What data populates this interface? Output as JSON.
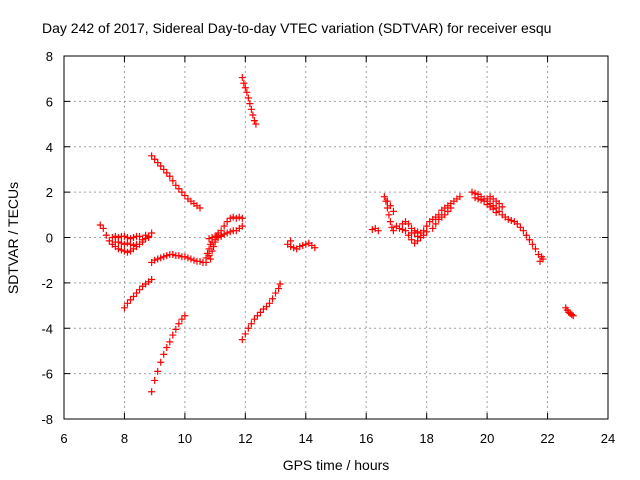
{
  "chart_data": {
    "type": "scatter",
    "title": "Day 242 of 2017, Sidereal Day-to-day VTEC variation (SDTVAR) for receiver esqu",
    "xlabel": "GPS time / hours",
    "ylabel": "SDTVAR / TECUs",
    "xlim": [
      6,
      24
    ],
    "ylim": [
      -8,
      8
    ],
    "xticks": [
      "6",
      "8",
      "10",
      "12",
      "14",
      "16",
      "18",
      "20",
      "22",
      "24"
    ],
    "yticks": [
      "-8",
      "-6",
      "-4",
      "-2",
      "0",
      "2",
      "4",
      "6",
      "8"
    ],
    "grid": true,
    "marker": "plus",
    "color": "#ff0000",
    "series": [
      {
        "points": [
          [
            7.2,
            0.55
          ],
          [
            7.3,
            0.4
          ],
          [
            7.4,
            0.1
          ],
          [
            7.5,
            -0.15
          ],
          [
            7.6,
            -0.3
          ],
          [
            7.7,
            -0.4
          ],
          [
            7.8,
            -0.5
          ],
          [
            7.9,
            -0.55
          ],
          [
            8.0,
            -0.6
          ],
          [
            8.1,
            -0.65
          ],
          [
            8.2,
            -0.6
          ],
          [
            8.3,
            -0.5
          ],
          [
            8.4,
            -0.4
          ],
          [
            8.5,
            -0.3
          ],
          [
            8.6,
            -0.2
          ],
          [
            8.7,
            -0.05
          ],
          [
            8.8,
            0.05
          ],
          [
            8.9,
            0.2
          ],
          [
            7.6,
            0.0
          ],
          [
            7.7,
            0.05
          ],
          [
            7.8,
            0.0
          ],
          [
            7.9,
            0.05
          ],
          [
            8.0,
            0.05
          ],
          [
            8.1,
            0.0
          ],
          [
            8.2,
            -0.05
          ],
          [
            8.3,
            0.0
          ],
          [
            8.4,
            0.05
          ],
          [
            8.5,
            0.05
          ],
          [
            7.7,
            -0.2
          ],
          [
            7.8,
            -0.2
          ],
          [
            7.9,
            -0.25
          ],
          [
            8.0,
            -0.3
          ],
          [
            8.1,
            -0.25
          ],
          [
            8.2,
            -0.3
          ],
          [
            8.3,
            -0.35
          ],
          [
            8.4,
            -0.3
          ],
          [
            8.6,
            -0.1
          ],
          [
            8.7,
            0.1
          ],
          [
            8.8,
            0.0
          ],
          [
            8.0,
            -3.1
          ],
          [
            8.1,
            -2.9
          ],
          [
            8.2,
            -2.75
          ],
          [
            8.3,
            -2.6
          ],
          [
            8.4,
            -2.45
          ],
          [
            8.5,
            -2.3
          ],
          [
            8.6,
            -2.15
          ],
          [
            8.7,
            -2.05
          ],
          [
            8.8,
            -1.95
          ],
          [
            8.9,
            -1.85
          ],
          [
            8.9,
            -6.8
          ],
          [
            9.0,
            -6.3
          ],
          [
            9.1,
            -5.9
          ],
          [
            9.2,
            -5.5
          ],
          [
            9.3,
            -5.15
          ],
          [
            9.4,
            -4.85
          ],
          [
            9.5,
            -4.6
          ],
          [
            9.6,
            -4.3
          ],
          [
            9.7,
            -4.05
          ],
          [
            9.8,
            -3.8
          ],
          [
            9.9,
            -3.6
          ],
          [
            10.0,
            -3.45
          ],
          [
            8.9,
            3.6
          ],
          [
            9.0,
            3.45
          ],
          [
            9.1,
            3.3
          ],
          [
            9.2,
            3.15
          ],
          [
            9.3,
            3.0
          ],
          [
            9.4,
            2.85
          ],
          [
            9.5,
            2.7
          ],
          [
            9.6,
            2.5
          ],
          [
            9.7,
            2.3
          ],
          [
            9.8,
            2.15
          ],
          [
            9.9,
            2.0
          ],
          [
            10.0,
            1.85
          ],
          [
            10.1,
            1.7
          ],
          [
            10.2,
            1.6
          ],
          [
            10.3,
            1.5
          ],
          [
            10.4,
            1.4
          ],
          [
            10.5,
            1.3
          ],
          [
            8.9,
            -1.1
          ],
          [
            9.0,
            -1.0
          ],
          [
            9.1,
            -0.95
          ],
          [
            9.2,
            -0.9
          ],
          [
            9.3,
            -0.85
          ],
          [
            9.4,
            -0.8
          ],
          [
            9.5,
            -0.75
          ],
          [
            9.6,
            -0.75
          ],
          [
            9.7,
            -0.8
          ],
          [
            9.8,
            -0.8
          ],
          [
            9.9,
            -0.85
          ],
          [
            10.0,
            -0.85
          ],
          [
            10.1,
            -0.9
          ],
          [
            10.2,
            -0.95
          ],
          [
            10.3,
            -1.0
          ],
          [
            10.4,
            -1.05
          ],
          [
            10.5,
            -1.05
          ],
          [
            10.6,
            -1.1
          ],
          [
            10.7,
            -1.1
          ],
          [
            10.7,
            -0.9
          ],
          [
            10.75,
            -0.7
          ],
          [
            10.8,
            -0.5
          ],
          [
            10.85,
            -0.3
          ],
          [
            10.9,
            -0.2
          ],
          [
            11.0,
            -0.1
          ],
          [
            11.1,
            0.0
          ],
          [
            11.2,
            0.05
          ],
          [
            11.3,
            0.15
          ],
          [
            11.4,
            0.2
          ],
          [
            11.5,
            0.25
          ],
          [
            11.6,
            0.3
          ],
          [
            11.7,
            0.3
          ],
          [
            11.8,
            0.4
          ],
          [
            11.9,
            0.5
          ],
          [
            10.8,
            -0.8
          ],
          [
            10.85,
            -0.95
          ],
          [
            10.9,
            -0.6
          ],
          [
            10.95,
            -0.4
          ],
          [
            11.0,
            -0.2
          ],
          [
            11.05,
            0.05
          ],
          [
            11.1,
            0.2
          ],
          [
            11.2,
            0.3
          ],
          [
            11.3,
            0.5
          ],
          [
            11.4,
            0.7
          ],
          [
            11.5,
            0.85
          ],
          [
            11.6,
            0.9
          ],
          [
            11.7,
            0.85
          ],
          [
            11.8,
            0.9
          ],
          [
            11.9,
            0.85
          ],
          [
            10.8,
            -0.05
          ],
          [
            10.9,
            0.0
          ],
          [
            11.0,
            0.05
          ],
          [
            11.1,
            0.1
          ],
          [
            11.2,
            0.1
          ],
          [
            11.9,
            7.05
          ],
          [
            11.95,
            6.8
          ],
          [
            12.0,
            6.6
          ],
          [
            12.05,
            6.4
          ],
          [
            12.1,
            6.15
          ],
          [
            12.15,
            5.9
          ],
          [
            12.2,
            5.65
          ],
          [
            12.25,
            5.4
          ],
          [
            12.3,
            5.15
          ],
          [
            12.35,
            5.0
          ],
          [
            11.9,
            -4.5
          ],
          [
            12.0,
            -4.25
          ],
          [
            12.1,
            -4.0
          ],
          [
            12.2,
            -3.8
          ],
          [
            12.3,
            -3.6
          ],
          [
            12.4,
            -3.45
          ],
          [
            12.5,
            -3.3
          ],
          [
            12.6,
            -3.15
          ],
          [
            12.7,
            -3.05
          ],
          [
            12.8,
            -2.9
          ],
          [
            12.9,
            -2.7
          ],
          [
            13.0,
            -2.45
          ],
          [
            13.1,
            -2.25
          ],
          [
            13.15,
            -2.05
          ],
          [
            13.4,
            -0.3
          ],
          [
            13.5,
            -0.4
          ],
          [
            13.6,
            -0.45
          ],
          [
            13.7,
            -0.5
          ],
          [
            13.8,
            -0.4
          ],
          [
            13.9,
            -0.35
          ],
          [
            14.0,
            -0.3
          ],
          [
            14.1,
            -0.25
          ],
          [
            14.2,
            -0.35
          ],
          [
            14.3,
            -0.45
          ],
          [
            13.5,
            -0.15
          ],
          [
            16.2,
            0.35
          ],
          [
            16.3,
            0.4
          ],
          [
            16.4,
            0.3
          ],
          [
            16.6,
            1.8
          ],
          [
            16.65,
            1.6
          ],
          [
            16.7,
            1.3
          ],
          [
            16.75,
            1.0
          ],
          [
            16.8,
            0.7
          ],
          [
            16.85,
            0.45
          ],
          [
            16.9,
            0.3
          ],
          [
            17.0,
            0.5
          ],
          [
            17.1,
            0.4
          ],
          [
            17.2,
            0.35
          ],
          [
            17.3,
            0.3
          ],
          [
            17.4,
            0.1
          ],
          [
            17.5,
            -0.1
          ],
          [
            17.6,
            -0.25
          ],
          [
            17.7,
            -0.15
          ],
          [
            17.8,
            0.0
          ],
          [
            17.9,
            0.1
          ],
          [
            18.0,
            0.25
          ],
          [
            16.7,
            1.6
          ],
          [
            16.8,
            1.4
          ],
          [
            16.9,
            1.15
          ],
          [
            17.2,
            0.6
          ],
          [
            17.3,
            0.7
          ],
          [
            17.4,
            0.6
          ],
          [
            17.5,
            0.4
          ],
          [
            17.6,
            0.2
          ],
          [
            17.7,
            0.05
          ],
          [
            17.5,
            0.2
          ],
          [
            17.6,
            0.3
          ],
          [
            17.7,
            0.25
          ],
          [
            17.8,
            0.2
          ],
          [
            17.9,
            0.3
          ],
          [
            18.0,
            0.5
          ],
          [
            18.1,
            0.7
          ],
          [
            18.2,
            0.8
          ],
          [
            18.3,
            0.9
          ],
          [
            18.4,
            1.0
          ],
          [
            18.5,
            1.2
          ],
          [
            18.6,
            1.3
          ],
          [
            18.7,
            1.4
          ],
          [
            18.8,
            1.5
          ],
          [
            18.9,
            1.6
          ],
          [
            19.0,
            1.7
          ],
          [
            19.1,
            1.8
          ],
          [
            18.2,
            0.4
          ],
          [
            18.3,
            0.6
          ],
          [
            18.4,
            0.8
          ],
          [
            18.5,
            0.9
          ],
          [
            18.6,
            1.0
          ],
          [
            18.7,
            1.15
          ],
          [
            18.8,
            1.3
          ],
          [
            19.5,
            2.0
          ],
          [
            19.6,
            1.95
          ],
          [
            19.7,
            1.9
          ],
          [
            19.8,
            1.8
          ],
          [
            19.9,
            1.7
          ],
          [
            20.0,
            1.6
          ],
          [
            20.1,
            1.5
          ],
          [
            20.2,
            1.4
          ],
          [
            20.3,
            1.3
          ],
          [
            20.4,
            1.15
          ],
          [
            20.5,
            1.0
          ],
          [
            20.6,
            0.9
          ],
          [
            20.7,
            0.8
          ],
          [
            20.8,
            0.75
          ],
          [
            20.9,
            0.7
          ],
          [
            21.0,
            0.6
          ],
          [
            21.1,
            0.45
          ],
          [
            21.2,
            0.3
          ],
          [
            21.3,
            0.1
          ],
          [
            21.4,
            -0.1
          ],
          [
            21.5,
            -0.3
          ],
          [
            21.6,
            -0.5
          ],
          [
            21.7,
            -0.75
          ],
          [
            21.75,
            -1.05
          ],
          [
            21.8,
            -0.85
          ],
          [
            21.85,
            -0.95
          ],
          [
            19.6,
            1.75
          ],
          [
            19.7,
            1.7
          ],
          [
            19.8,
            1.65
          ],
          [
            19.9,
            1.6
          ],
          [
            20.0,
            1.7
          ],
          [
            20.1,
            1.8
          ],
          [
            20.2,
            1.7
          ],
          [
            20.3,
            1.6
          ],
          [
            20.4,
            1.5
          ],
          [
            20.5,
            1.35
          ],
          [
            20.0,
            1.45
          ],
          [
            20.1,
            1.35
          ],
          [
            20.2,
            1.25
          ],
          [
            20.3,
            1.1
          ],
          [
            22.6,
            -3.1
          ],
          [
            22.65,
            -3.2
          ],
          [
            22.7,
            -3.3
          ],
          [
            22.75,
            -3.35
          ],
          [
            22.8,
            -3.4
          ],
          [
            22.85,
            -3.45
          ]
        ]
      }
    ]
  }
}
